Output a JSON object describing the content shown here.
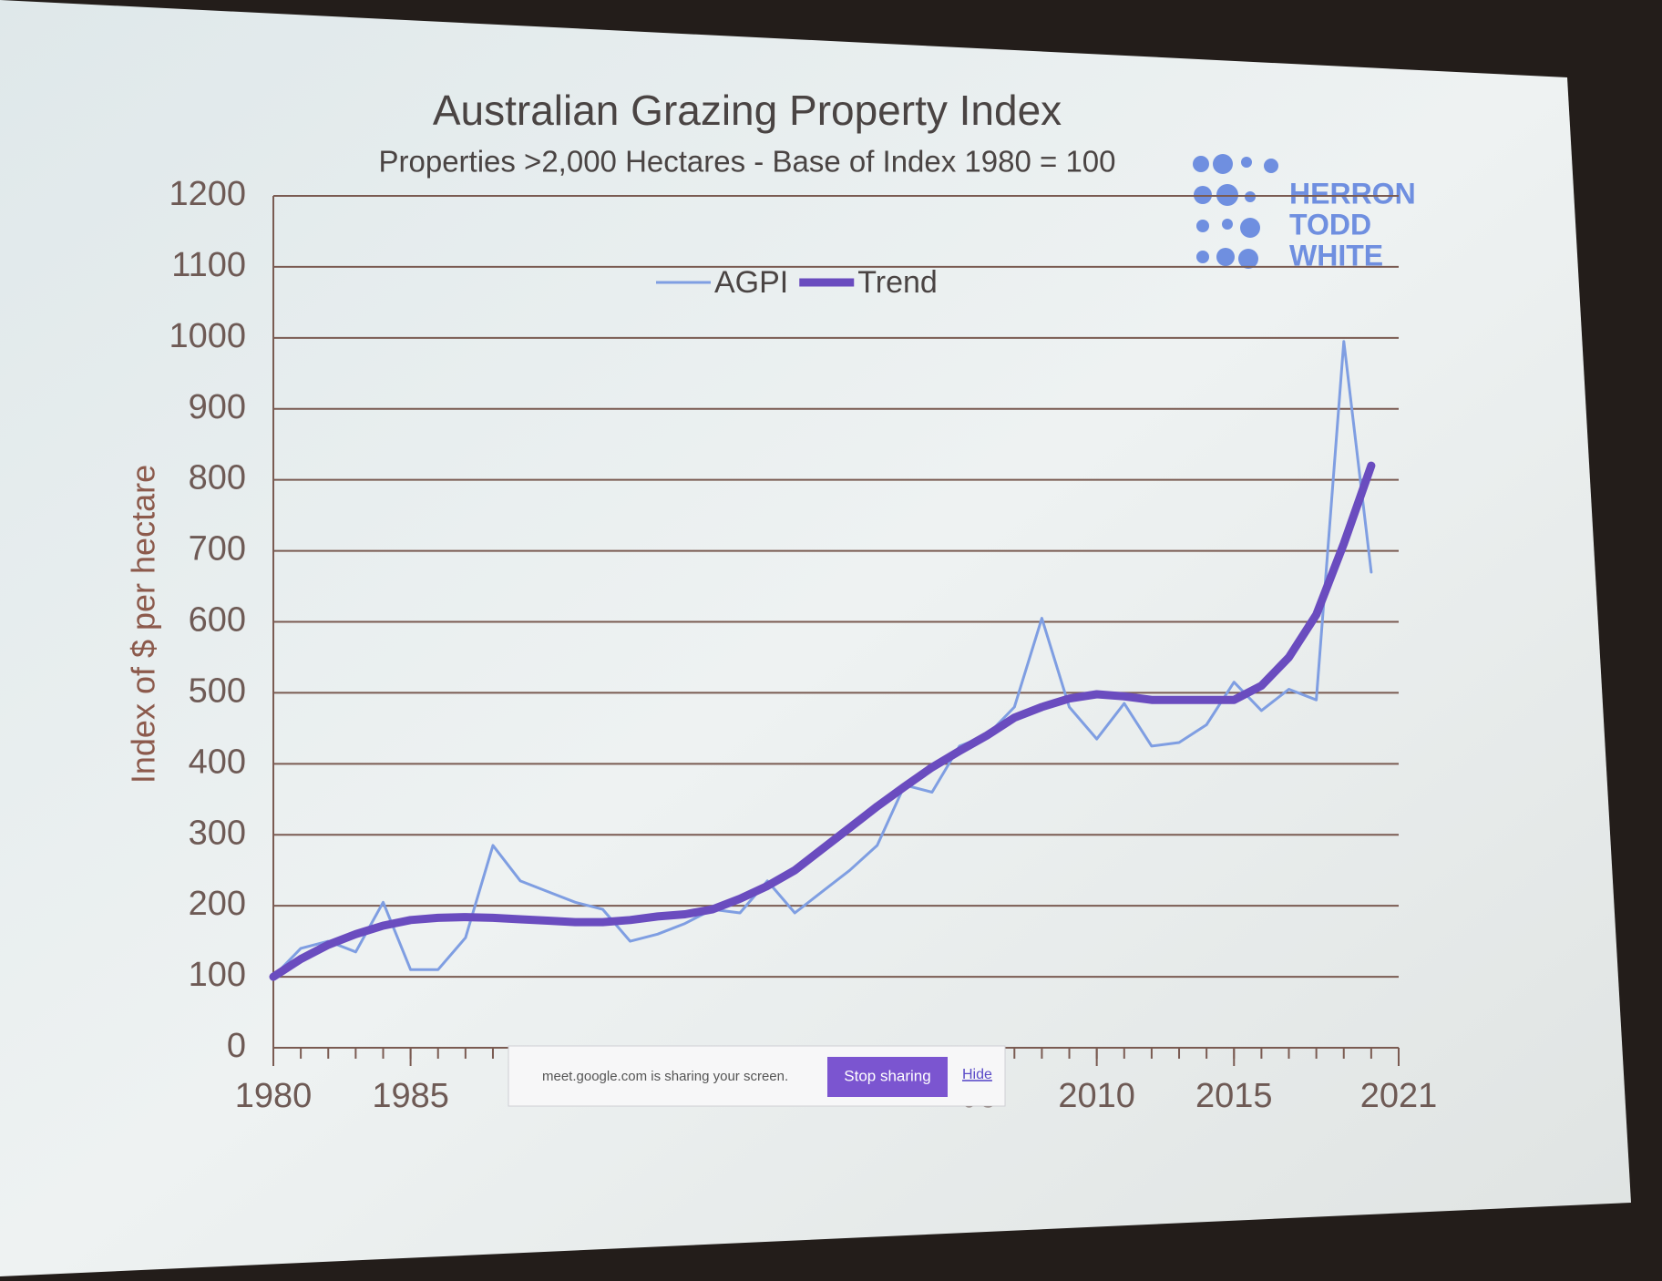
{
  "chart_data": {
    "type": "line",
    "title": "Australian Grazing Property Index",
    "subtitle": "Properties >2,000 Hectares - Base of Index 1980 = 100",
    "y_label": "Index of $ per hectare",
    "logo": [
      "HERRON",
      "TODD",
      "WHITE"
    ],
    "x": [
      1980,
      1981,
      1982,
      1983,
      1984,
      1985,
      1986,
      1987,
      1988,
      1989,
      1990,
      1991,
      1992,
      1993,
      1994,
      1995,
      1996,
      1997,
      1998,
      1999,
      2000,
      2001,
      2002,
      2003,
      2004,
      2005,
      2006,
      2007,
      2008,
      2009,
      2010,
      2011,
      2012,
      2013,
      2014,
      2015,
      2016,
      2017,
      2018,
      2019,
      2020
    ],
    "series": [
      {
        "name": "AGPI",
        "color": "#7f9ee2",
        "width": 3,
        "values": [
          100,
          140,
          150,
          135,
          205,
          110,
          110,
          155,
          285,
          235,
          220,
          205,
          195,
          150,
          160,
          175,
          195,
          190,
          235,
          190,
          220,
          250,
          285,
          370,
          360,
          425,
          440,
          480,
          605,
          480,
          435,
          485,
          425,
          430,
          455,
          515,
          475,
          505,
          490,
          995,
          670
        ]
      },
      {
        "name": "Trend",
        "color": "#6a4cbf",
        "width": 9,
        "values": [
          100,
          125,
          145,
          160,
          172,
          180,
          183,
          184,
          183,
          181,
          179,
          177,
          177,
          180,
          185,
          188,
          195,
          210,
          228,
          250,
          280,
          310,
          340,
          368,
          395,
          418,
          440,
          465,
          480,
          492,
          498,
          495,
          490,
          490,
          490,
          490,
          510,
          550,
          610,
          710,
          820
        ]
      }
    ],
    "xlim": [
      1980,
      2021
    ],
    "xticks": [
      1980,
      1985,
      {
        "value": 2005,
        "label": "05"
      },
      2010,
      2015,
      2021
    ],
    "ylim": [
      0,
      1200
    ],
    "yticks": [
      0,
      100,
      200,
      300,
      400,
      500,
      600,
      700,
      800,
      900,
      1000,
      1100,
      1200
    ],
    "grid": true
  },
  "overlay": {
    "message": "meet.google.com is sharing your screen.",
    "stop_button": "Stop sharing",
    "hide_link": "Hide"
  }
}
